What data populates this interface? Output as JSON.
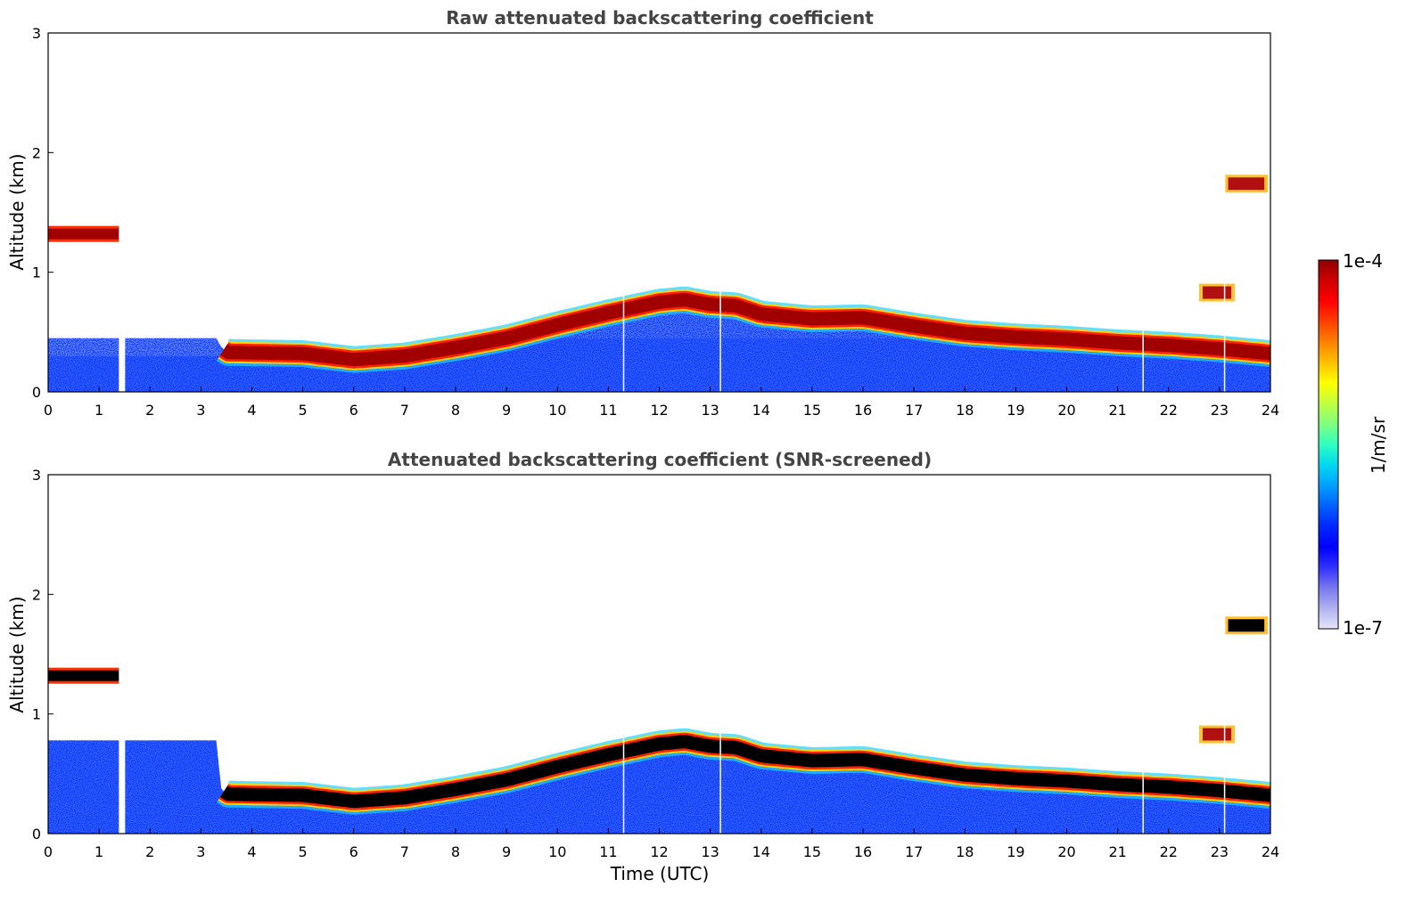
{
  "chart_data": [
    {
      "type": "heatmap",
      "title": "Raw attenuated backscattering coefficient",
      "xlabel": "",
      "ylabel": "Altitude (km)",
      "xlim": [
        0,
        24
      ],
      "ylim": [
        0,
        3
      ],
      "xticks": [
        "0",
        "1",
        "2",
        "3",
        "4",
        "5",
        "6",
        "7",
        "8",
        "9",
        "10",
        "11",
        "12",
        "13",
        "14",
        "15",
        "16",
        "17",
        "18",
        "19",
        "20",
        "21",
        "22",
        "23",
        "24"
      ],
      "yticks": [
        "0",
        "1",
        "2",
        "3"
      ],
      "data_gaps_hours": [
        1.45,
        11.3,
        13.2,
        21.5,
        23.1
      ],
      "layer_altitude_km": {
        "time": [
          0,
          1.4,
          3.5,
          5,
          6,
          7,
          8,
          9,
          10,
          11,
          12,
          12.5,
          13,
          13.5,
          14,
          15,
          16,
          17,
          18,
          19,
          20,
          21,
          22,
          23,
          24
        ],
        "altitude": [
          1.32,
          1.32,
          0.33,
          0.32,
          0.27,
          0.3,
          0.37,
          0.45,
          0.56,
          0.66,
          0.75,
          0.77,
          0.73,
          0.72,
          0.65,
          0.61,
          0.62,
          0.55,
          0.49,
          0.46,
          0.44,
          0.41,
          0.39,
          0.36,
          0.32
        ]
      },
      "elevated_layers": [
        {
          "t0": 23.1,
          "t1": 23.95,
          "altitude_km": 1.74
        },
        {
          "t0": 22.6,
          "t1": 23.3,
          "altitude_km": 0.83
        }
      ]
    },
    {
      "type": "heatmap",
      "title": "Attenuated backscattering coefficient (SNR-screened)",
      "xlabel": "Time (UTC)",
      "ylabel": "Altitude (km)",
      "xlim": [
        0,
        24
      ],
      "ylim": [
        0,
        3
      ],
      "xticks": [
        "0",
        "1",
        "2",
        "3",
        "4",
        "5",
        "6",
        "7",
        "8",
        "9",
        "10",
        "11",
        "12",
        "13",
        "14",
        "15",
        "16",
        "17",
        "18",
        "19",
        "20",
        "21",
        "22",
        "23",
        "24"
      ],
      "yticks": [
        "0",
        "1",
        "2",
        "3"
      ],
      "data_gaps_hours": [
        1.45,
        11.3,
        13.2,
        21.5,
        23.1
      ]
    }
  ],
  "colorbar": {
    "label": "1/m/sr",
    "max_label": "1e-4",
    "min_label": "1e-7",
    "colors": [
      "#e6e6fa",
      "#b0b0f0",
      "#7878ee",
      "#3030ff",
      "#0000ff",
      "#0028ff",
      "#0060ff",
      "#00a0ff",
      "#00d8f0",
      "#30ffc0",
      "#80ff80",
      "#c0ff40",
      "#ffff00",
      "#ffc000",
      "#ff8000",
      "#ff4000",
      "#ff0000",
      "#d00000",
      "#900000"
    ]
  }
}
